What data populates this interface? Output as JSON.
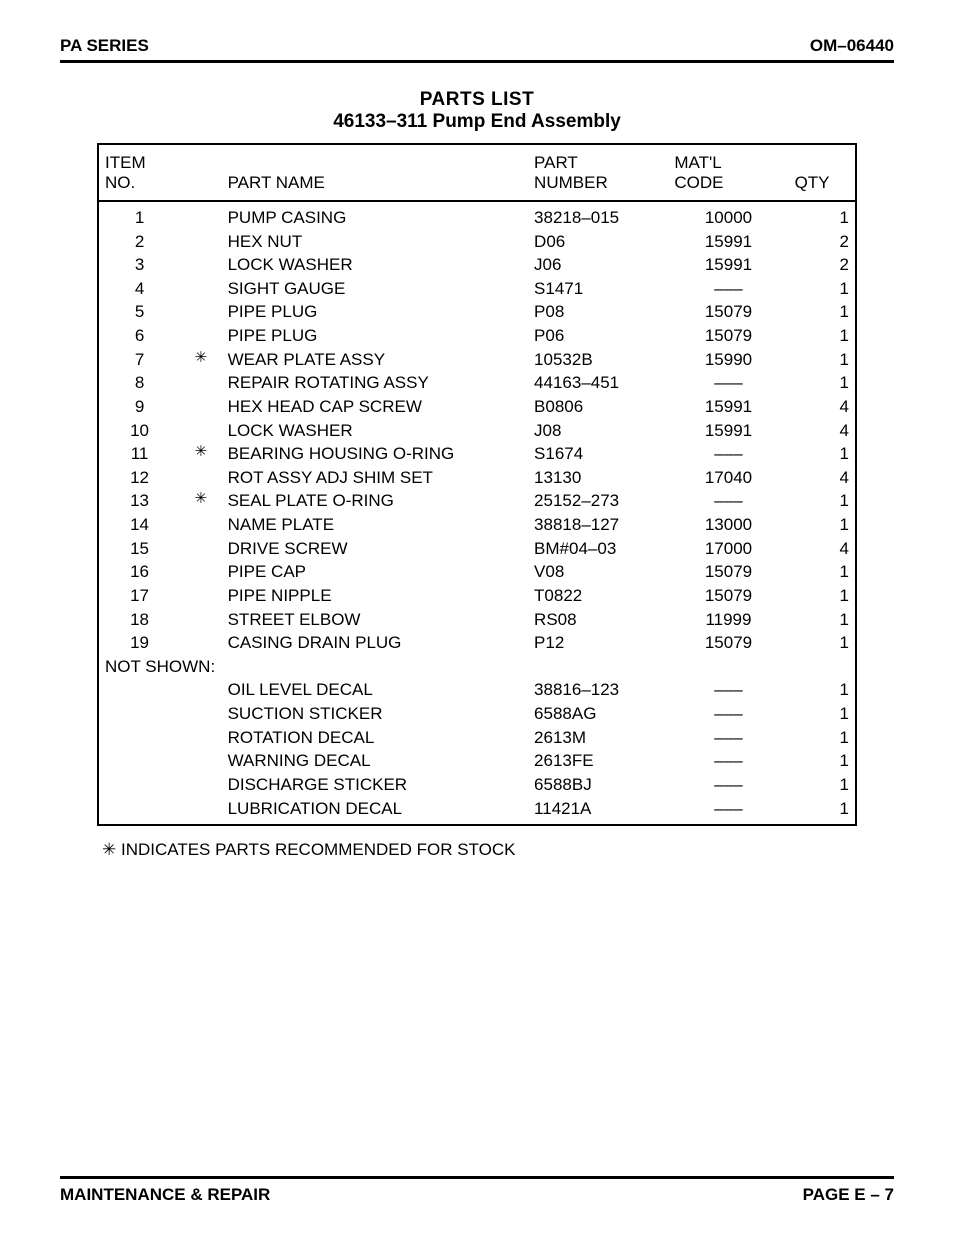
{
  "header": {
    "left": "PA SERIES",
    "right": "OM–06440"
  },
  "title": {
    "line1": "PARTS LIST",
    "line2": "46133–311 Pump End Assembly"
  },
  "columns": {
    "item1": "ITEM",
    "item2": "NO.",
    "name": "PART NAME",
    "part1": "PART",
    "part2": "NUMBER",
    "matl1": "MAT'L",
    "matl2": "CODE",
    "qty": "QTY"
  },
  "rows": [
    {
      "item": "1",
      "star": "",
      "name": "PUMP CASING",
      "part": "38218–015",
      "matl": "10000",
      "qty": "1"
    },
    {
      "item": "2",
      "star": "",
      "name": "HEX NUT",
      "part": "D06",
      "matl": "15991",
      "qty": "2"
    },
    {
      "item": "3",
      "star": "",
      "name": "LOCK WASHER",
      "part": "J06",
      "matl": "15991",
      "qty": "2"
    },
    {
      "item": "4",
      "star": "",
      "name": "SIGHT GAUGE",
      "part": "S1471",
      "matl": "–––",
      "qty": "1"
    },
    {
      "item": "5",
      "star": "",
      "name": "PIPE PLUG",
      "part": "P08",
      "matl": "15079",
      "qty": "1"
    },
    {
      "item": "6",
      "star": "",
      "name": "PIPE PLUG",
      "part": "P06",
      "matl": "15079",
      "qty": "1"
    },
    {
      "item": "7",
      "star": "✳",
      "name": "WEAR PLATE ASSY",
      "part": "10532B",
      "matl": "15990",
      "qty": "1"
    },
    {
      "item": "8",
      "star": "",
      "name": "REPAIR ROTATING ASSY",
      "part": "44163–451",
      "matl": "–––",
      "qty": "1"
    },
    {
      "item": "9",
      "star": "",
      "name": "HEX HEAD CAP SCREW",
      "part": "B0806",
      "matl": "15991",
      "qty": "4"
    },
    {
      "item": "10",
      "star": "",
      "name": "LOCK WASHER",
      "part": "J08",
      "matl": "15991",
      "qty": "4"
    },
    {
      "item": "11",
      "star": "✳",
      "name": "BEARING HOUSING O-RING",
      "part": "S1674",
      "matl": "–––",
      "qty": "1"
    },
    {
      "item": "12",
      "star": "",
      "name": "ROT ASSY ADJ SHIM SET",
      "part": "13130",
      "matl": "17040",
      "qty": "4"
    },
    {
      "item": "13",
      "star": "✳",
      "name": "SEAL PLATE O-RING",
      "part": "25152–273",
      "matl": "–––",
      "qty": "1"
    },
    {
      "item": "14",
      "star": "",
      "name": "NAME PLATE",
      "part": "38818–127",
      "matl": "13000",
      "qty": "1"
    },
    {
      "item": "15",
      "star": "",
      "name": "DRIVE SCREW",
      "part": "BM#04–03",
      "matl": "17000",
      "qty": "4"
    },
    {
      "item": "16",
      "star": "",
      "name": "PIPE CAP",
      "part": "V08",
      "matl": "15079",
      "qty": "1"
    },
    {
      "item": "17",
      "star": "",
      "name": "PIPE NIPPLE",
      "part": "T0822",
      "matl": "15079",
      "qty": "1"
    },
    {
      "item": "18",
      "star": "",
      "name": "STREET ELBOW",
      "part": "RS08",
      "matl": "11999",
      "qty": "1"
    },
    {
      "item": "19",
      "star": "",
      "name": "CASING DRAIN PLUG",
      "part": "P12",
      "matl": "15079",
      "qty": "1"
    }
  ],
  "not_shown_label": "NOT SHOWN:",
  "not_shown": [
    {
      "name": "OIL LEVEL DECAL",
      "part": "38816–123",
      "matl": "–––",
      "qty": "1"
    },
    {
      "name": "SUCTION STICKER",
      "part": "6588AG",
      "matl": "–––",
      "qty": "1"
    },
    {
      "name": "ROTATION DECAL",
      "part": "2613M",
      "matl": "–––",
      "qty": "1"
    },
    {
      "name": "WARNING DECAL",
      "part": "2613FE",
      "matl": "–––",
      "qty": "1"
    },
    {
      "name": "DISCHARGE STICKER",
      "part": "6588BJ",
      "matl": "–––",
      "qty": "1"
    },
    {
      "name": "LUBRICATION DECAL",
      "part": "11421A",
      "matl": "–––",
      "qty": "1"
    }
  ],
  "footnote": "✳ INDICATES PARTS RECOMMENDED FOR STOCK",
  "footer": {
    "left": "MAINTENANCE & REPAIR",
    "right": "PAGE E – 7"
  }
}
